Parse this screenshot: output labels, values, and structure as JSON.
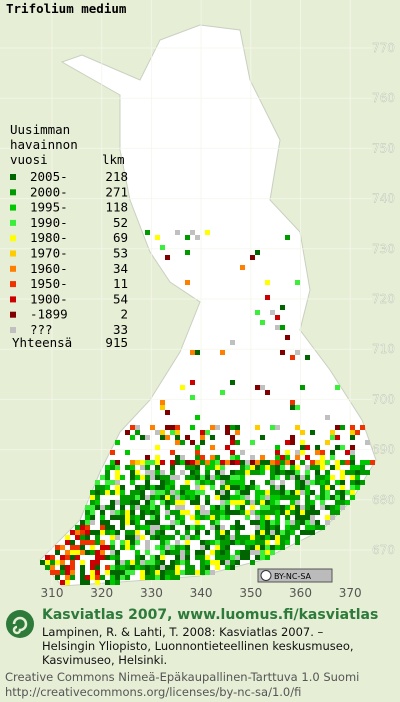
{
  "title": "Trifolium medium",
  "badge": "BY-NC-SA",
  "grid": {
    "y_labels": [
      770,
      760,
      750,
      740,
      730,
      720,
      710,
      700,
      690,
      680,
      670
    ],
    "x_labels": [
      310,
      320,
      330,
      340,
      350,
      360,
      370
    ]
  },
  "legend": {
    "header": [
      "Uusimman",
      "havainnon",
      "vuosi"
    ],
    "count_header": "lkm",
    "rows": [
      {
        "label": "2005-",
        "count": 218,
        "color": "#006400"
      },
      {
        "label": "2000-",
        "count": 271,
        "color": "#009a00"
      },
      {
        "label": "1995-",
        "count": 118,
        "color": "#00c800"
      },
      {
        "label": "1990-",
        "count": 52,
        "color": "#3cee3c"
      },
      {
        "label": "1980-",
        "count": 69,
        "color": "#ffff00"
      },
      {
        "label": "1970-",
        "count": 53,
        "color": "#ffcc00"
      },
      {
        "label": "1960-",
        "count": 34,
        "color": "#ff8000"
      },
      {
        "label": "1950-",
        "count": 11,
        "color": "#ee3300"
      },
      {
        "label": "1900-",
        "count": 54,
        "color": "#cc0000"
      },
      {
        "label": "-1899",
        "count": 2,
        "color": "#800000"
      },
      {
        "label": "???",
        "count": 33,
        "color": "#c0c0c0"
      }
    ],
    "total_label": "Yhteensä",
    "total": 915
  },
  "footer": {
    "heading": "Kasviatlas 2007, www.luomus.fi/kasviatlas",
    "citation": [
      "Lampinen, R. & Lahti, T. 2008: Kasviatlas 2007. –",
      "Helsingin Yliopisto, Luonnontieteellinen keskusmuseo,",
      "Kasvimuseo, Helsinki."
    ],
    "license": [
      "Creative Commons Nimeä-Epäkaupallinen-Tarttuva 1.0 Suomi",
      "http://creativecommons.org/licenses/by-nc-sa/1.0/fi"
    ]
  }
}
